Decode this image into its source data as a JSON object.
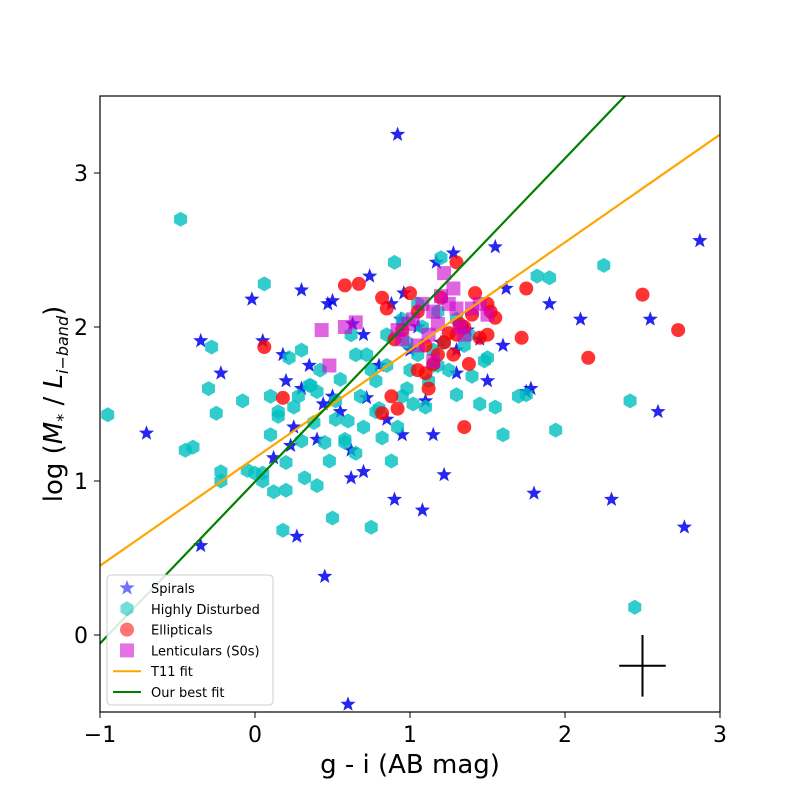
{
  "chart_data": {
    "type": "scatter",
    "xlabel": "g - i (AB mag)",
    "ylabel": {
      "prefix": "log (",
      "symbol": "M",
      "sub1": "*",
      "sep": " / ",
      "symbol2": "L",
      "sub2": "i−band",
      "suffix": ")"
    },
    "xlim": [
      -1,
      3
    ],
    "ylim": [
      -0.5,
      3.5
    ],
    "x_ticks": [
      -1,
      0,
      1,
      2,
      3
    ],
    "x_tick_labels": [
      "−1",
      "0",
      "1",
      "2",
      "3"
    ],
    "y_ticks": [
      0,
      1,
      2,
      3
    ],
    "y_tick_labels": [
      "0",
      "1",
      "2",
      "3"
    ],
    "grid": false,
    "legend_position": "lower-left",
    "series": [
      {
        "name": "Spirals",
        "marker": "star",
        "color": "#0000ee",
        "x": [
          0.92,
          0.63,
          0.88,
          0.96,
          -0.02,
          0.3,
          0.47,
          0.5,
          0.74,
          0.94,
          1.17,
          1.28,
          1.55,
          1.62,
          0.2,
          0.05,
          -0.35,
          -0.22,
          -0.7,
          -0.35,
          0.23,
          0.27,
          0.45,
          0.6,
          0.7,
          0.62,
          0.72,
          0.9,
          1.15,
          1.22,
          1.37,
          1.45,
          1.3,
          1.5,
          1.6,
          1.75,
          1.8,
          1.9,
          2.1,
          2.55,
          2.6,
          2.87,
          2.77,
          2.3,
          1.78,
          1.08,
          0.25,
          0.44,
          0.62,
          0.5,
          0.3,
          0.12,
          0.18,
          0.35,
          0.55,
          0.8,
          1.0,
          1.2,
          1.3,
          1.1,
          0.95,
          0.85,
          0.4,
          0.7,
          1.05
        ],
        "y": [
          3.25,
          2.02,
          2.15,
          2.22,
          2.18,
          2.24,
          2.15,
          2.17,
          2.33,
          2.05,
          2.42,
          2.48,
          2.52,
          2.25,
          1.65,
          1.91,
          1.91,
          1.7,
          1.31,
          0.58,
          1.23,
          0.64,
          0.38,
          -0.45,
          1.06,
          1.02,
          1.54,
          0.88,
          1.3,
          1.04,
          1.98,
          1.92,
          1.85,
          1.65,
          1.88,
          1.58,
          0.92,
          2.15,
          2.05,
          2.05,
          1.45,
          2.56,
          0.7,
          0.88,
          1.6,
          0.81,
          1.35,
          1.5,
          1.2,
          1.55,
          1.6,
          1.15,
          1.82,
          1.75,
          1.45,
          1.75,
          1.85,
          1.9,
          1.7,
          1.52,
          1.3,
          1.4,
          1.27,
          1.95,
          2.0
        ]
      },
      {
        "name": "Highly Disturbed",
        "marker": "hexagon",
        "color": "#00bfbf",
        "x": [
          -0.48,
          -0.95,
          -0.3,
          -0.28,
          -0.25,
          -0.45,
          -0.4,
          -0.22,
          -0.22,
          -0.08,
          -0.05,
          0.0,
          0.05,
          0.06,
          0.1,
          0.12,
          0.15,
          0.18,
          0.2,
          0.22,
          0.25,
          0.28,
          0.3,
          0.32,
          0.35,
          0.38,
          0.4,
          0.42,
          0.45,
          0.48,
          0.5,
          0.52,
          0.55,
          0.58,
          0.6,
          0.62,
          0.65,
          0.68,
          0.7,
          0.72,
          0.75,
          0.78,
          0.8,
          0.82,
          0.85,
          0.88,
          0.9,
          0.92,
          0.95,
          0.98,
          1.0,
          1.02,
          1.05,
          1.08,
          1.1,
          1.12,
          1.15,
          1.18,
          1.2,
          1.25,
          1.3,
          1.35,
          1.4,
          1.45,
          1.5,
          1.55,
          1.6,
          1.7,
          1.75,
          1.82,
          1.9,
          1.94,
          2.25,
          2.42,
          2.45,
          0.1,
          0.15,
          0.05,
          0.2,
          0.3,
          0.4,
          0.52,
          0.65,
          0.75,
          0.85,
          0.95,
          1.05,
          1.15,
          1.22,
          1.3,
          1.38,
          1.48,
          0.36,
          0.58,
          0.78,
          0.98,
          1.18
        ],
        "y": [
          2.7,
          1.43,
          1.6,
          1.87,
          1.44,
          1.2,
          1.22,
          1.06,
          1.0,
          1.52,
          1.07,
          1.05,
          1.05,
          2.28,
          1.3,
          0.93,
          1.45,
          0.68,
          0.94,
          1.8,
          1.48,
          1.55,
          1.85,
          1.02,
          1.62,
          1.38,
          0.97,
          1.72,
          1.25,
          1.13,
          0.76,
          1.52,
          1.66,
          1.27,
          1.39,
          1.95,
          1.82,
          1.55,
          1.35,
          1.82,
          0.7,
          1.65,
          1.47,
          1.28,
          1.75,
          1.13,
          2.42,
          1.35,
          1.55,
          1.9,
          1.72,
          1.5,
          1.82,
          2.0,
          1.48,
          1.65,
          1.75,
          2.1,
          2.45,
          1.72,
          1.56,
          1.88,
          1.68,
          1.5,
          1.8,
          1.48,
          1.3,
          1.55,
          1.56,
          2.33,
          2.32,
          1.33,
          2.4,
          1.52,
          0.18,
          1.55,
          1.42,
          1.0,
          1.12,
          1.26,
          1.58,
          1.4,
          1.18,
          1.72,
          1.95,
          2.05,
          2.15,
          1.85,
          1.9,
          2.05,
          1.95,
          1.78,
          1.62,
          1.25,
          1.45,
          1.6,
          1.75
        ]
      },
      {
        "name": "Ellipticals",
        "marker": "circle",
        "color": "#ff0000",
        "x": [
          0.06,
          0.18,
          0.58,
          0.67,
          0.82,
          0.85,
          1.3,
          1.0,
          1.42,
          1.2,
          1.05,
          0.95,
          0.9,
          1.1,
          1.18,
          1.25,
          1.3,
          1.35,
          1.4,
          1.45,
          1.5,
          1.55,
          1.52,
          1.38,
          1.28,
          1.15,
          1.12,
          1.32,
          1.05,
          0.92,
          0.82,
          1.35,
          1.75,
          1.72,
          1.5,
          2.15,
          2.5,
          2.73,
          0.88,
          1.1,
          1.22
        ],
        "y": [
          1.87,
          1.54,
          2.27,
          2.28,
          2.19,
          2.12,
          2.42,
          2.22,
          2.22,
          2.19,
          2.1,
          1.98,
          1.92,
          1.88,
          1.82,
          1.96,
          1.95,
          2.0,
          2.08,
          1.93,
          2.15,
          2.06,
          2.1,
          1.76,
          1.82,
          1.76,
          1.6,
          2.02,
          1.72,
          1.47,
          1.44,
          1.35,
          2.25,
          1.93,
          1.95,
          1.8,
          2.21,
          1.98,
          1.55,
          1.7,
          1.9
        ]
      },
      {
        "name": "Lenticulars (S0s)",
        "marker": "square",
        "color": "#cc00cc",
        "x": [
          0.43,
          0.48,
          0.58,
          0.65,
          0.92,
          0.95,
          1.02,
          1.08,
          1.12,
          1.15,
          1.18,
          1.2,
          1.22,
          1.25,
          1.28,
          1.3,
          1.32,
          1.35,
          1.4,
          1.45,
          1.5,
          1.05,
          1.15,
          0.99
        ],
        "y": [
          1.98,
          1.75,
          2.0,
          2.03,
          1.98,
          1.92,
          2.05,
          2.15,
          1.95,
          2.1,
          2.02,
          2.2,
          2.35,
          2.15,
          2.25,
          2.12,
          2.0,
          1.95,
          2.12,
          2.15,
          2.08,
          1.88,
          1.78,
          2.02
        ]
      }
    ],
    "fits": [
      {
        "name": "T11 fit",
        "color": "#ffa500",
        "slope": 0.7,
        "intercept": 1.15
      },
      {
        "name": "Our best fit",
        "color": "#008000",
        "slope": 1.05,
        "intercept": 0.995
      }
    ],
    "error_cross": {
      "x": 2.5,
      "y": -0.2,
      "dx": 0.15,
      "dy": 0.2
    }
  }
}
